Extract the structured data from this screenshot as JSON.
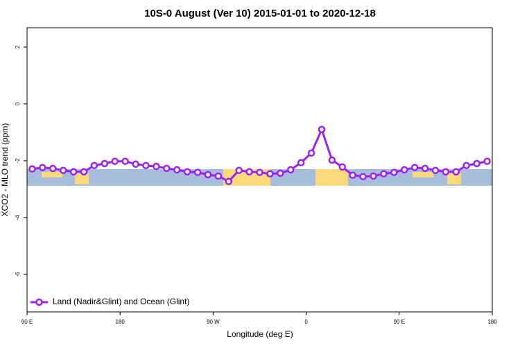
{
  "chart_data": {
    "type": "line",
    "title": "10S-0 August (Ver 10)   2015-01-01 to 2020-12-18",
    "x_label": "Longitude (deg E)",
    "y_label": "XCO2 - MLO trend (ppm)",
    "xlim": [
      90,
      540
    ],
    "ylim": [
      -7.32,
      2.68
    ],
    "xticks": [
      {
        "value": 90,
        "label": "90 E"
      },
      180,
      {
        "value": 270,
        "label": "90 W"
      },
      {
        "value": 360,
        "label": "0"
      },
      {
        "value": 450,
        "label": "90 E"
      },
      {
        "value": 540,
        "label": "180"
      }
    ],
    "yticks": [
      2,
      0,
      -2,
      -4,
      -6
    ],
    "legend": "bottom-left",
    "series": [
      {
        "name": "Land (Nadir&Glint) and Ocean (Glint)",
        "color": "#a020f0",
        "x": [
          95,
          105,
          115,
          125,
          135,
          145,
          155,
          165,
          175,
          185,
          195,
          205,
          215,
          225,
          235,
          245,
          255,
          265,
          275,
          285,
          295,
          305,
          315,
          325,
          335,
          345,
          355,
          365,
          375,
          385,
          395,
          405,
          415,
          425,
          435,
          445,
          455,
          465,
          475,
          485,
          495,
          505,
          515,
          525,
          535
        ],
        "values": [
          -2.29,
          -2.24,
          -2.27,
          -2.34,
          -2.39,
          -2.39,
          -2.17,
          -2.1,
          -2.02,
          -2.02,
          -2.12,
          -2.17,
          -2.2,
          -2.27,
          -2.32,
          -2.39,
          -2.41,
          -2.49,
          -2.54,
          -2.73,
          -2.34,
          -2.39,
          -2.41,
          -2.46,
          -2.44,
          -2.32,
          -2.07,
          -1.73,
          -0.9,
          -1.98,
          -2.22,
          -2.51,
          -2.56,
          -2.54,
          -2.46,
          -2.41,
          -2.32,
          -2.24,
          -2.27,
          -2.34,
          -2.39,
          -2.39,
          -2.17,
          -2.1,
          -2.02
        ]
      }
    ]
  }
}
